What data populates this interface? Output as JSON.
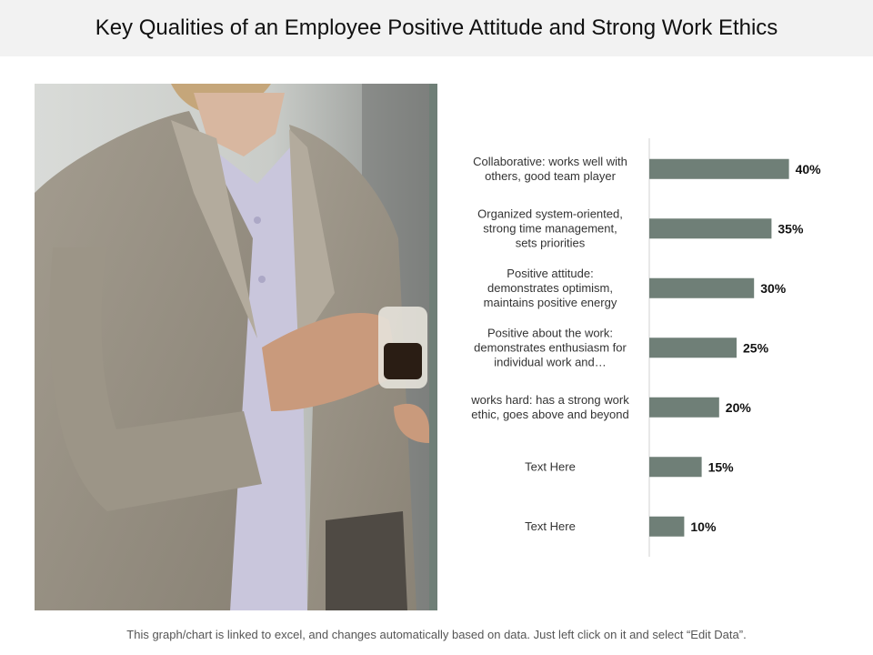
{
  "page": {
    "title": "Key Qualities of an Employee Positive Attitude and Strong Work Ethics",
    "footer": "This graph/chart is linked to excel, and changes automatically based on data. Just left click on it and select “Edit Data”."
  },
  "colors": {
    "bar": "#6f7f77",
    "title_bg": "#f2f2f2",
    "accent_bar": "#6f7f77"
  },
  "chart_data": {
    "type": "bar",
    "orientation": "horizontal",
    "categories": [
      [
        "Collaborative: works well with",
        "others, good team player"
      ],
      [
        "Organized system-oriented,",
        "strong time management,",
        "sets priorities"
      ],
      [
        "Positive attitude:",
        "demonstrates optimism,",
        "maintains positive energy"
      ],
      [
        "Positive about the work:",
        "demonstrates enthusiasm for",
        "individual work and…"
      ],
      [
        "works hard: has a strong work",
        "ethic, goes above and beyond"
      ],
      [
        "Text Here"
      ],
      [
        "Text Here"
      ]
    ],
    "values": [
      40,
      35,
      30,
      25,
      20,
      15,
      10
    ],
    "value_labels": [
      "40%",
      "35%",
      "30%",
      "25%",
      "20%",
      "15%",
      "10%"
    ],
    "xlim": [
      0,
      50
    ],
    "grid": false
  }
}
